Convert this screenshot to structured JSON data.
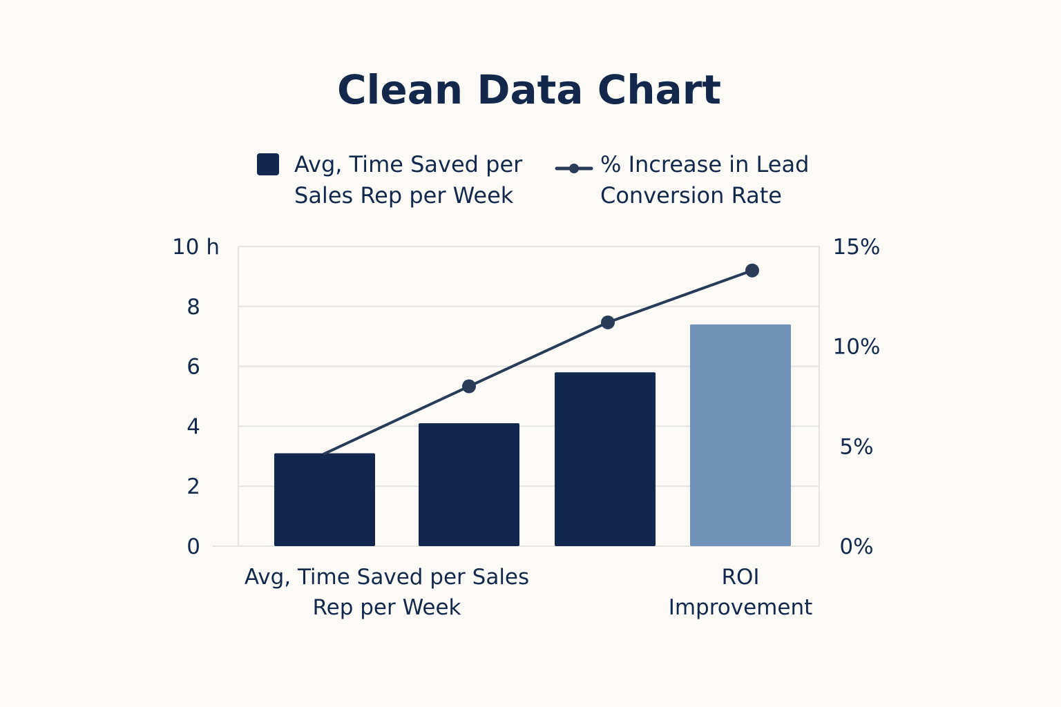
{
  "chart_data": {
    "type": "bar",
    "title": "Clean Data Chart",
    "categories": [
      [
        "Avg, Time Saved per Sales",
        "Rep per Week"
      ],
      [],
      [],
      [
        "ROI",
        "Improvement"
      ]
    ],
    "legend": [
      {
        "label": [
          "Avg, Time Saved per",
          "Sales Rep per Week"
        ],
        "marker": "square",
        "color": "#13284f"
      },
      {
        "label": [
          "% Increase in Lead",
          "Conversion Rate"
        ],
        "marker": "line",
        "color": "#2a3b58"
      }
    ],
    "series": [
      {
        "axis": "left",
        "kind": "bar",
        "values": [
          3.1,
          4.1,
          5.8,
          7.4
        ]
      },
      {
        "axis": "right",
        "kind": "line",
        "values": [
          4.6,
          8.0,
          11.2,
          13.8
        ]
      }
    ],
    "bar_colors": [
      "#13284f",
      "#13284f",
      "#13284f",
      "#7193b9"
    ],
    "line_markers": [
      false,
      true,
      true,
      true
    ],
    "y_left": {
      "ylim": [
        0,
        10
      ],
      "ticks": [
        "0",
        "2",
        "4",
        "6",
        "8",
        "10 h"
      ],
      "tick_values": [
        0,
        2,
        4,
        6,
        8,
        10
      ]
    },
    "y_right": {
      "ylim": [
        0,
        15
      ],
      "ticks": [
        "0%",
        "5%",
        "10%",
        "15%"
      ],
      "tick_values": [
        0,
        5,
        10,
        15
      ]
    },
    "grid": true,
    "legend_position": "top",
    "colors": {
      "dark": "#13284f",
      "light": "#7193b9",
      "line": "#2a3b58",
      "grid": "#e4e4e1",
      "text": "#13284a",
      "background": "#fbfaf6"
    }
  }
}
